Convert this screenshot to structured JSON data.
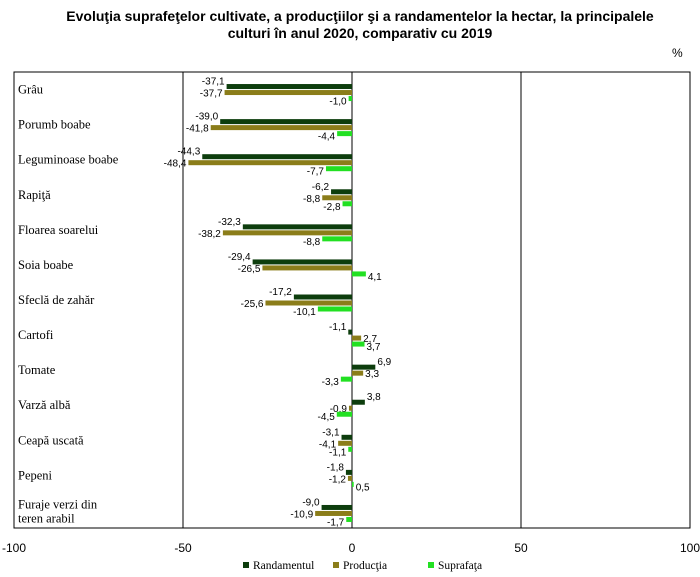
{
  "chart_data": {
    "type": "bar",
    "orientation": "horizontal",
    "title": "Evoluţia suprafeţelor cultivate, a producţiilor şi a randamentelor la hectar, la principalele culturi în anul 2020, comparativ cu 2019",
    "title_lines": [
      "Evoluţia suprafeţelor cultivate, a producţiilor şi a randamentelor la hectar, la principalele",
      "culturi în anul 2020, comparativ cu 2019"
    ],
    "unit": "%",
    "xlim": [
      -100,
      100
    ],
    "xticks": [
      -100,
      -50,
      0,
      50,
      100
    ],
    "grid": "vertical",
    "legend_position": "bottom",
    "categories": [
      [
        "Grâu"
      ],
      [
        "Porumb boabe"
      ],
      [
        "Leguminoase boabe"
      ],
      [
        "Rapiţă"
      ],
      [
        "Floarea soarelui"
      ],
      [
        "Soia boabe"
      ],
      [
        "Sfeclă de zahăr"
      ],
      [
        "Cartofi"
      ],
      [
        "Tomate"
      ],
      [
        "Varză albă"
      ],
      [
        "Ceapă uscată"
      ],
      [
        "Pepeni"
      ],
      [
        "Furaje verzi din",
        "teren arabil"
      ]
    ],
    "series": [
      {
        "name": "Randamentul",
        "color": "#0d3d0d",
        "values": [
          -37.1,
          -39.0,
          -44.3,
          -6.2,
          -32.3,
          -29.4,
          -17.2,
          -1.1,
          6.9,
          3.8,
          -3.1,
          -1.8,
          -9.0
        ],
        "labels": [
          "-37,1",
          "-39,0",
          "-44,3",
          "-6,2",
          "-32,3",
          "-29,4",
          "-17,2",
          "-1,1",
          "6,9",
          "3,8",
          "-3,1",
          "-1,8",
          "-9,0"
        ]
      },
      {
        "name": "Producţia",
        "color": "#8b7d1a",
        "values": [
          -37.7,
          -41.8,
          -48.4,
          -8.8,
          -38.2,
          -26.5,
          -25.6,
          2.7,
          3.3,
          -0.9,
          -4.1,
          -1.2,
          -10.9
        ],
        "labels": [
          "-37,7",
          "-41,8",
          "-48,4",
          "-8,8",
          "-38,2",
          "-26,5",
          "-25,6",
          "2,7",
          "3,3",
          "-0,9",
          "-4,1",
          "-1,2",
          "-10,9"
        ]
      },
      {
        "name": "Suprafaţa",
        "color": "#22e022",
        "values": [
          -1.0,
          -4.4,
          -7.7,
          -2.8,
          -8.8,
          4.1,
          -10.1,
          3.7,
          -3.3,
          -4.5,
          -1.1,
          0.5,
          -1.7
        ],
        "labels": [
          "-1,0",
          "-4,4",
          "-7,7",
          "-2,8",
          "-8,8",
          "4,1",
          "-10,1",
          "3,7",
          "-3,3",
          "-4,5",
          "-1,1",
          "0,5",
          "-1,7"
        ]
      }
    ]
  }
}
